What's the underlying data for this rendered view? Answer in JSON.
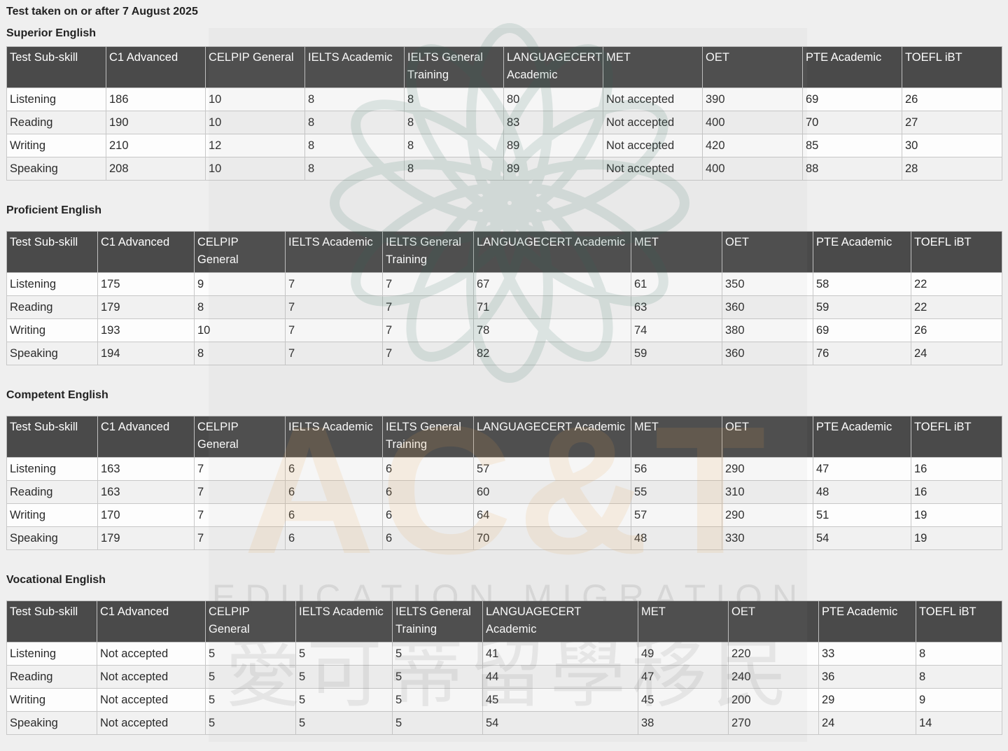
{
  "page_title": "Test taken on or after 7 August 2025",
  "columns": [
    "Test Sub-skill",
    "C1 Advanced",
    "CELPIP General",
    "IELTS Academic",
    "IELTS General Training",
    "LANGUAGECERT Academic",
    "MET",
    "OET",
    "PTE Academic",
    "TOEFL iBT"
  ],
  "sections": [
    {
      "title": "Superior English",
      "rows": [
        [
          "Listening",
          "186",
          "10",
          "8",
          "8",
          "80",
          "Not accepted",
          "390",
          "69",
          "26"
        ],
        [
          "Reading",
          "190",
          "10",
          "8",
          "8",
          "83",
          "Not accepted",
          "400",
          "70",
          "27"
        ],
        [
          "Writing",
          "210",
          "12",
          "8",
          "8",
          "89",
          "Not accepted",
          "420",
          "85",
          "30"
        ],
        [
          "Speaking",
          "208",
          "10",
          "8",
          "8",
          "89",
          "Not accepted",
          "400",
          "88",
          "28"
        ]
      ]
    },
    {
      "title": "Proficient English",
      "rows": [
        [
          "Listening",
          "175",
          "9",
          "7",
          "7",
          "67",
          "61",
          "350",
          "58",
          "22"
        ],
        [
          "Reading",
          "179",
          "8",
          "7",
          "7",
          "71",
          "63",
          "360",
          "59",
          "22"
        ],
        [
          "Writing",
          "193",
          "10",
          "7",
          "7",
          "78",
          "74",
          "380",
          "69",
          "26"
        ],
        [
          "Speaking",
          "194",
          "8",
          "7",
          "7",
          "82",
          "59",
          "360",
          "76",
          "24"
        ]
      ]
    },
    {
      "title": "Competent English",
      "rows": [
        [
          "Listening",
          "163",
          "7",
          "6",
          "6",
          "57",
          "56",
          "290",
          "47",
          "16"
        ],
        [
          "Reading",
          "163",
          "7",
          "6",
          "6",
          "60",
          "55",
          "310",
          "48",
          "16"
        ],
        [
          "Writing",
          "170",
          "7",
          "6",
          "6",
          "64",
          "57",
          "290",
          "51",
          "19"
        ],
        [
          "Speaking",
          "179",
          "7",
          "6",
          "6",
          "70",
          "48",
          "330",
          "54",
          "19"
        ]
      ]
    },
    {
      "title": "Vocational English",
      "rows": [
        [
          "Listening",
          "Not accepted",
          "5",
          "5",
          "5",
          "41",
          "49",
          "220",
          "33",
          "8"
        ],
        [
          "Reading",
          "Not accepted",
          "5",
          "5",
          "5",
          "44",
          "47",
          "240",
          "36",
          "8"
        ],
        [
          "Writing",
          "Not accepted",
          "5",
          "5",
          "5",
          "45",
          "45",
          "200",
          "29",
          "9"
        ],
        [
          "Speaking",
          "Not accepted",
          "5",
          "5",
          "5",
          "54",
          "38",
          "270",
          "24",
          "14"
        ]
      ]
    }
  ],
  "watermark": {
    "letters": "AC&T",
    "line1": "EDUCATION MIGRATION",
    "line2": "愛可蒂留學移民",
    "colors": {
      "green": "#2e6b5a",
      "orange": "#e8a24a",
      "gray": "#555555"
    }
  }
}
